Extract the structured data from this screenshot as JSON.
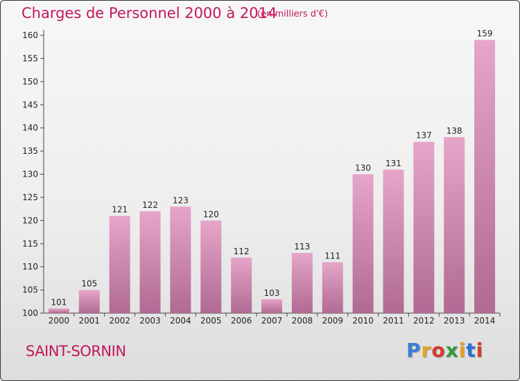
{
  "chart_data": {
    "type": "bar",
    "title": "Charges de Personnel 2000 à 2014",
    "subtitle": "(en milliers d'€)",
    "location": "SAINT-SORNIN",
    "categories": [
      "2000",
      "2001",
      "2002",
      "2003",
      "2004",
      "2005",
      "2006",
      "2007",
      "2008",
      "2009",
      "2010",
      "2011",
      "2012",
      "2013",
      "2014"
    ],
    "values": [
      101,
      105,
      121,
      122,
      123,
      120,
      112,
      103,
      113,
      111,
      130,
      131,
      137,
      138,
      159
    ],
    "ylim": [
      100,
      160
    ],
    "yticks": [
      100,
      105,
      110,
      115,
      120,
      125,
      130,
      135,
      140,
      145,
      150,
      155,
      160
    ],
    "grid": false,
    "data_labels": true
  },
  "colors": {
    "title": "#c2185b",
    "bar_top": "#e6a5c9",
    "bar_bottom": "#b06a93"
  },
  "logo": {
    "text": "Proxiti",
    "letter_colors": [
      "#3a7fd6",
      "#e8a020",
      "#d93a2a",
      "#2e9c3c",
      "#e8a020",
      "#2a6fd6",
      "#d93a2a"
    ]
  }
}
